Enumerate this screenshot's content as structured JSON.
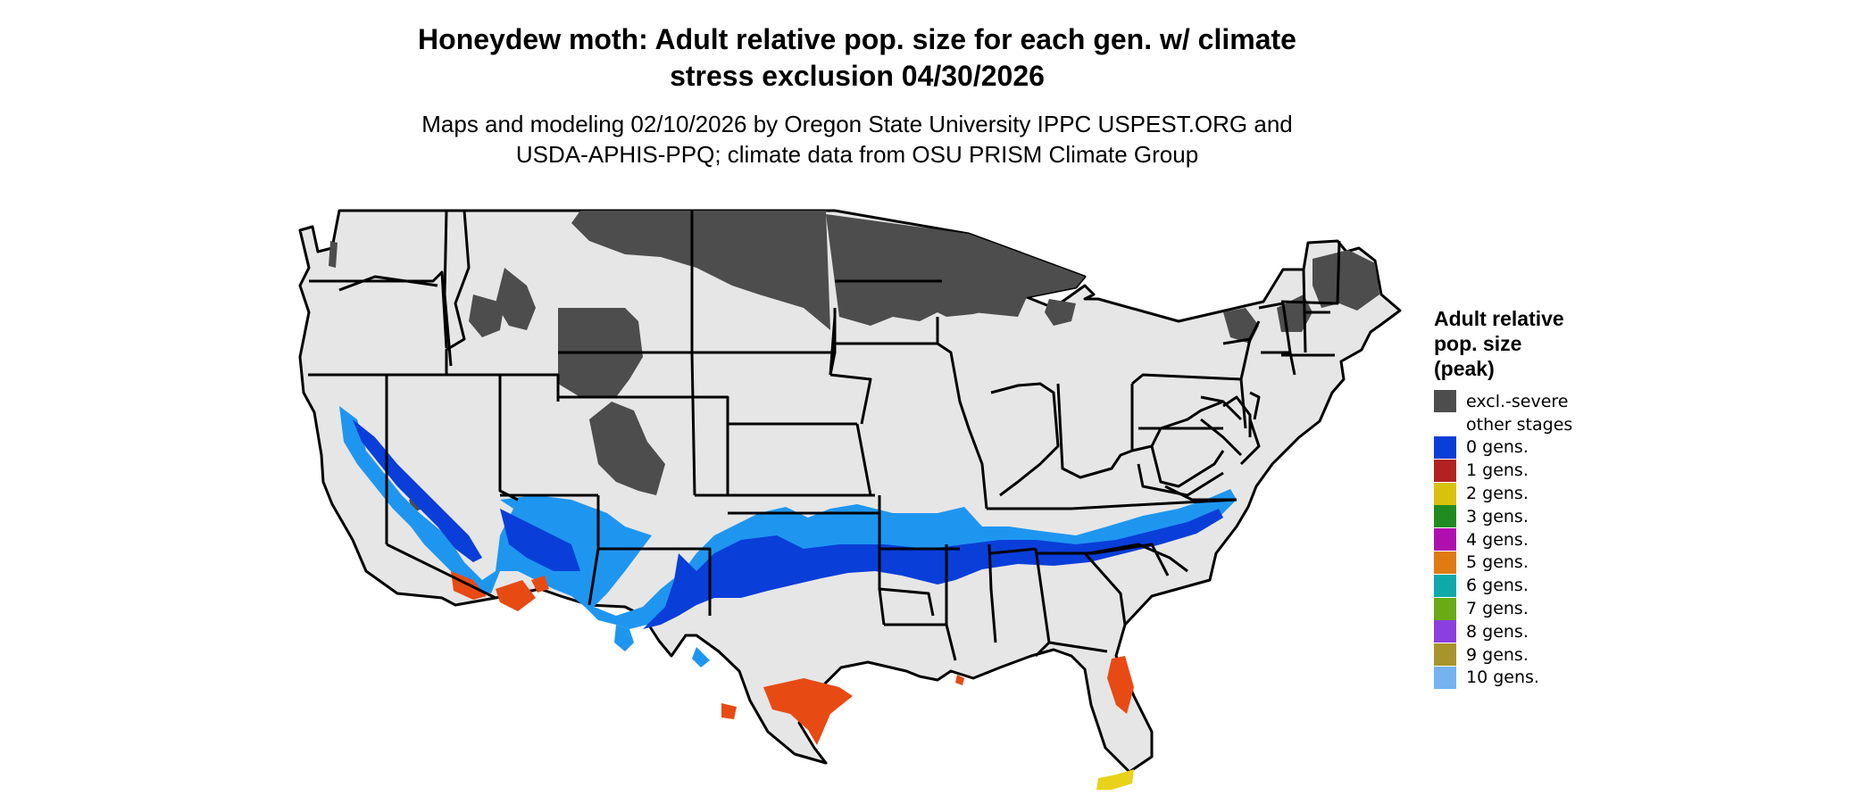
{
  "header": {
    "title_line1": "Honeydew moth: Adult relative pop. size for each gen. w/ climate",
    "title_line2": "stress exclusion 04/30/2026",
    "subtitle_line1": "Maps and modeling 02/10/2026 by Oregon State University IPPC USPEST.ORG and",
    "subtitle_line2": "USDA-APHIS-PPQ; climate data from OSU PRISM Climate Group"
  },
  "map": {
    "base_color": "#e6e6e6",
    "border_color": "#000000",
    "excl_color": "#4d4d4d",
    "zero_gen_color": "#0a3ed8",
    "light_gen_color": "#1e96f0",
    "one_gen_color": "#e84a14",
    "two_gen_color": "#e8d21a"
  },
  "legend": {
    "title": [
      "Adult relative",
      "pop. size",
      "(peak)"
    ],
    "items": [
      {
        "label": "excl.-severe",
        "color": "#4d4d4d"
      },
      {
        "label": "other stages",
        "color": "#ffffff"
      },
      {
        "label": "0 gens.",
        "color": "#0a3ed8"
      },
      {
        "label": "1 gens.",
        "color": "#b22222"
      },
      {
        "label": "2 gens.",
        "color": "#d8c20e"
      },
      {
        "label": "3 gens.",
        "color": "#218b21"
      },
      {
        "label": "4 gens.",
        "color": "#b00fb0"
      },
      {
        "label": "5 gens.",
        "color": "#e07b14"
      },
      {
        "label": "6 gens.",
        "color": "#0fa9a9"
      },
      {
        "label": "7 gens.",
        "color": "#6aaa14"
      },
      {
        "label": "8 gens.",
        "color": "#8b3fe0"
      },
      {
        "label": "9 gens.",
        "color": "#a8942a"
      },
      {
        "label": "10 gens.",
        "color": "#74b3f0"
      }
    ]
  }
}
